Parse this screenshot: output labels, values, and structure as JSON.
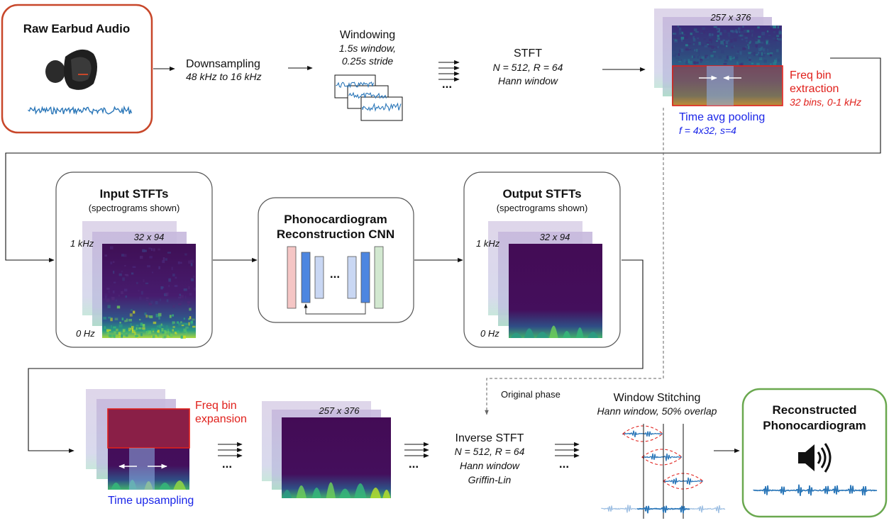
{
  "raw_audio": {
    "title": "Raw Earbud Audio"
  },
  "downsampling": {
    "title": "Downsampling",
    "detail": "48 kHz to 16 kHz"
  },
  "windowing": {
    "title": "Windowing",
    "detail1": "1.5s window,",
    "detail2": "0.25s stride"
  },
  "stft": {
    "title": "STFT",
    "detail1": "N = 512, R = 64",
    "detail2": "Hann window"
  },
  "big_spec": {
    "dims": "257 x 376"
  },
  "freq_extract": {
    "line1": "Freq bin",
    "line2": "extraction",
    "line3": "32 bins, 0-1 kHz"
  },
  "time_pool": {
    "line1": "Time avg pooling",
    "line2": "f = 4x32, s=4"
  },
  "input_stfts": {
    "title": "Input STFTs",
    "subtitle": "(spectrograms shown)",
    "dims": "32 x 94",
    "top_label": "1 kHz",
    "bottom_label": "0 Hz"
  },
  "cnn": {
    "line1": "Phonocardiogram",
    "line2": "Reconstruction CNN",
    "dots": "..."
  },
  "output_stfts": {
    "title": "Output STFTs",
    "subtitle": "(spectrograms shown)",
    "dims": "32 x 94",
    "top_label": "1 kHz",
    "bottom_label": "0 Hz"
  },
  "freq_expand": {
    "line1": "Freq bin",
    "line2": "expansion"
  },
  "time_upsample": {
    "label": "Time upsampling"
  },
  "up_spec": {
    "dims": "257 x 376"
  },
  "original_phase": {
    "label": "Original phase"
  },
  "istft": {
    "title": "Inverse STFT",
    "detail1": "N = 512, R = 64",
    "detail2": "Hann window",
    "detail3": "Griffin-Lin"
  },
  "stitching": {
    "title": "Window Stitching",
    "detail": "Hann window, 50% overlap"
  },
  "reconstructed": {
    "line1": "Reconstructed",
    "line2": "Phonocardiogram",
    "icon": "speaker-icon"
  },
  "ellipsis": "...",
  "colors": {
    "spec_dark": "#3f1e6a",
    "spec_mid": "#2d6f8e",
    "spec_green": "#3fb26a",
    "spec_yellow": "#d8e219",
    "red": "#e0201b",
    "blue": "#1a25e8",
    "orange_border": "#c8472a",
    "green_border": "#6aa84f",
    "wave_blue": "#2a76b8"
  }
}
